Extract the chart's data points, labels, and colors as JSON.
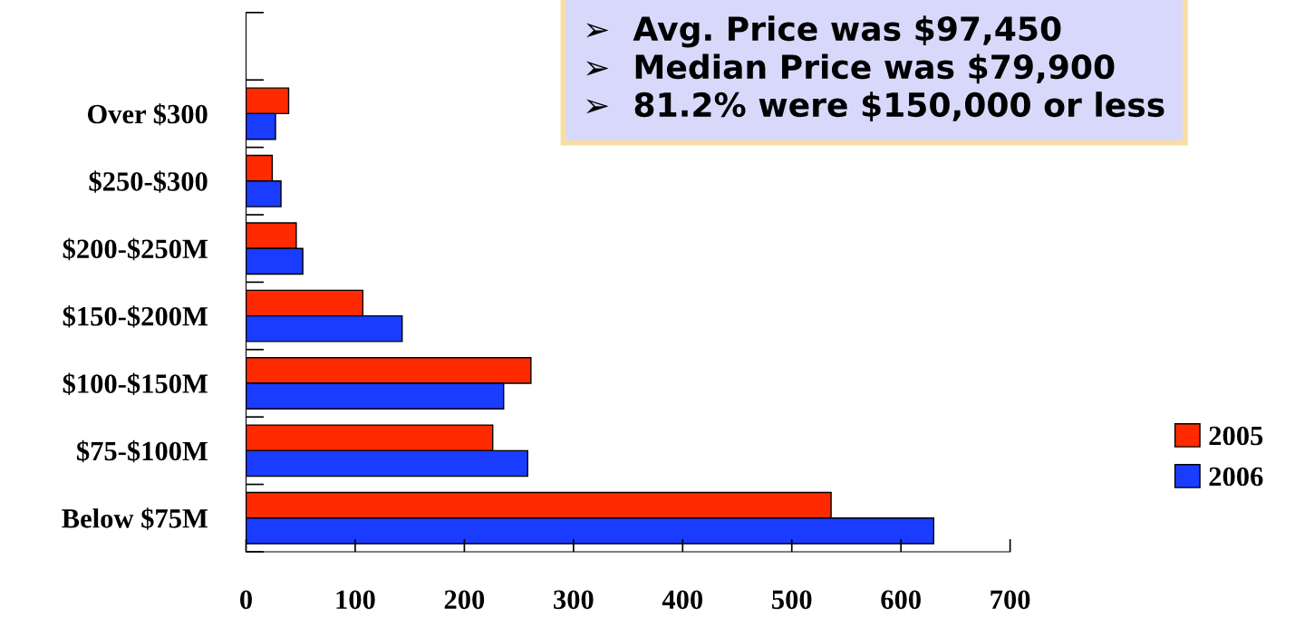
{
  "chart_data": {
    "type": "bar",
    "orientation": "horizontal",
    "categories": [
      null,
      "Over $300",
      "$250-$300",
      "$200-$250M",
      "$150-$200M",
      "$100-$150M",
      "$75-$100M",
      "Below $75M"
    ],
    "series": [
      {
        "name": "2005",
        "color": "#ff2a00",
        "values": [
          null,
          39,
          24,
          46,
          107,
          261,
          226,
          536
        ]
      },
      {
        "name": "2006",
        "color": "#1a3cff",
        "values": [
          null,
          27,
          32,
          52,
          143,
          236,
          258,
          630
        ]
      }
    ],
    "xlim": [
      0,
      700
    ],
    "xticks": [
      0,
      100,
      200,
      300,
      400,
      500,
      600,
      700
    ],
    "grid": false,
    "legend": "right",
    "annotations": [
      "➢  Avg. Price was $97,450",
      "➢  Median Price was $79,900",
      "➢  81.2% were $150,000 or less"
    ]
  }
}
